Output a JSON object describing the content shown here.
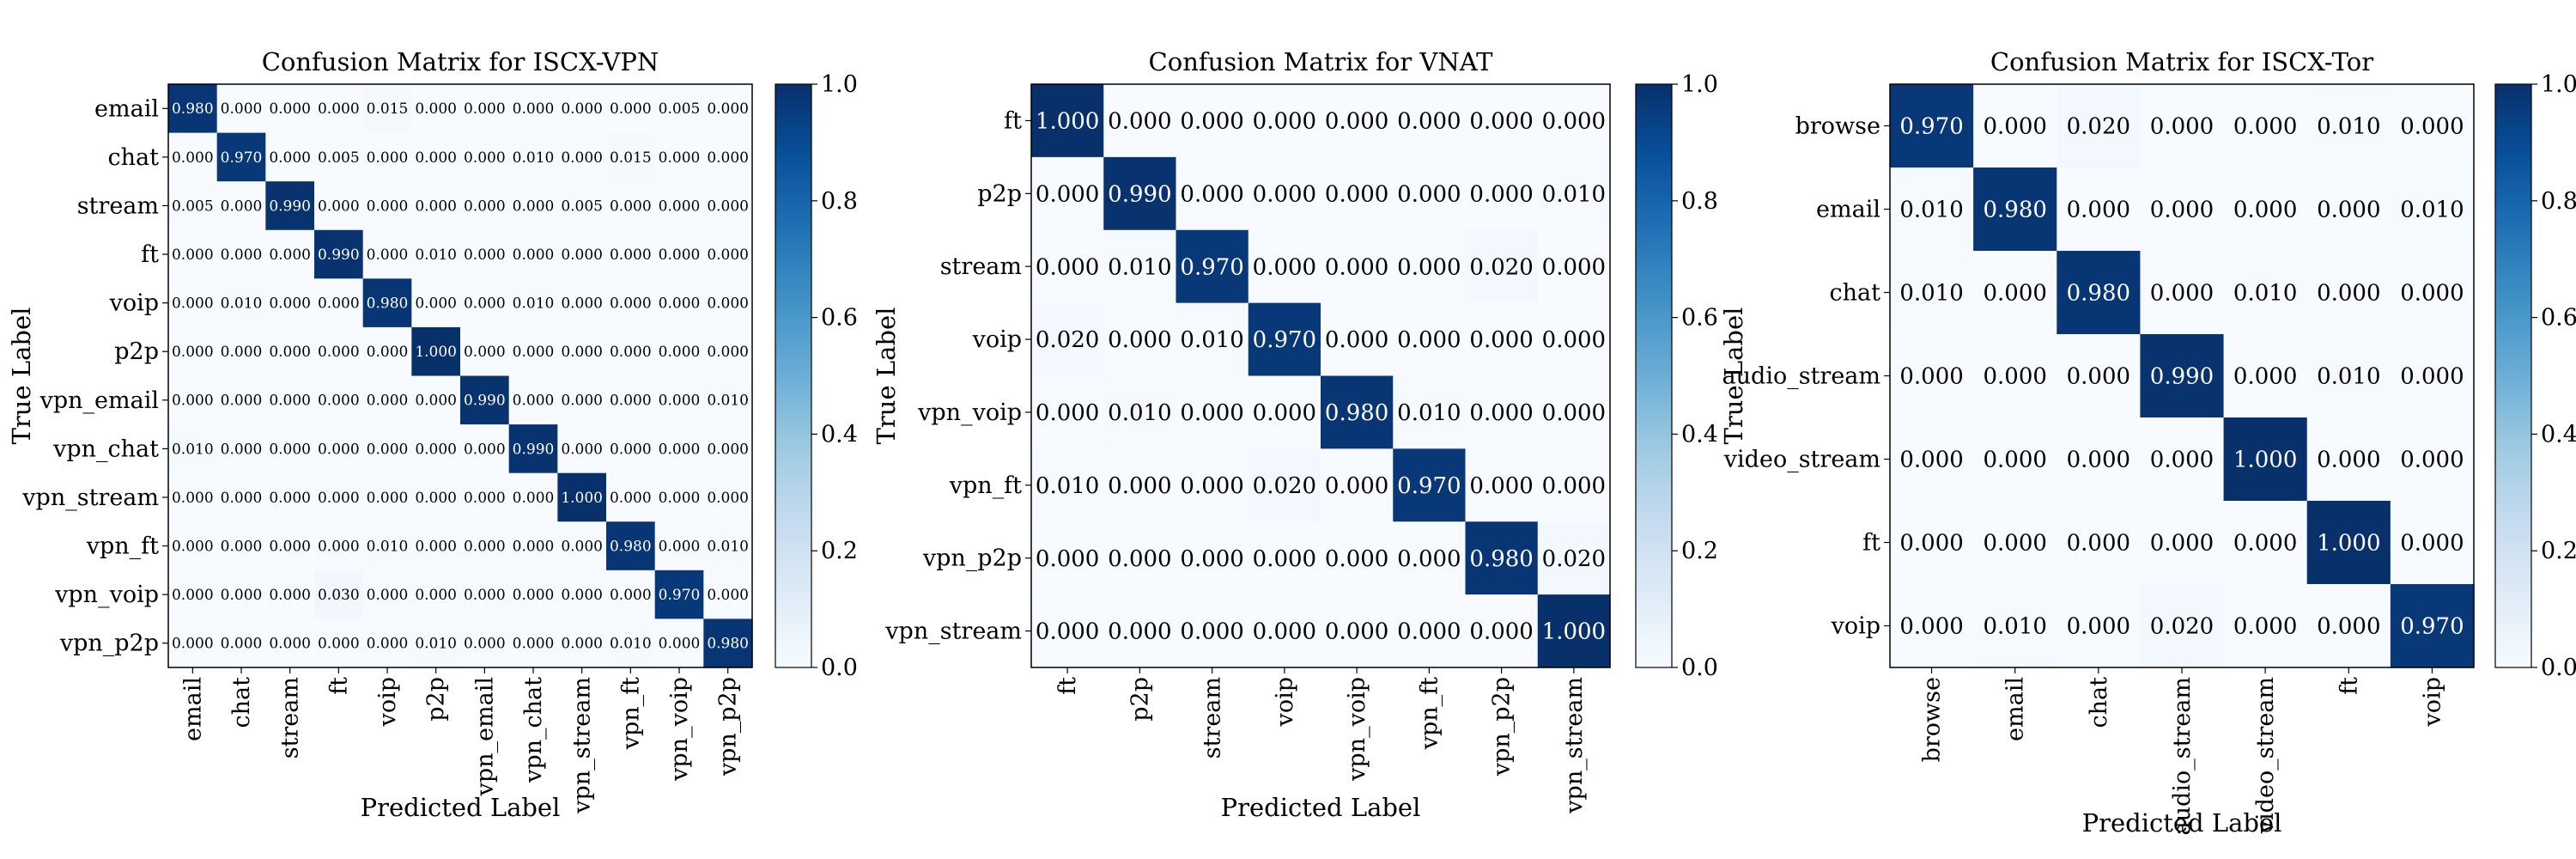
{
  "chart_data": [
    {
      "type": "heatmap",
      "title": "Confusion Matrix for ISCX-VPN",
      "xlabel": "Predicted Label",
      "ylabel": "True Label",
      "labels": [
        "email",
        "chat",
        "stream",
        "ft",
        "voip",
        "p2p",
        "vpn_email",
        "vpn_chat",
        "vpn_stream",
        "vpn_ft",
        "vpn_voip",
        "vpn_p2p"
      ],
      "matrix": [
        [
          0.98,
          0.0,
          0.0,
          0.0,
          0.015,
          0.0,
          0.0,
          0.0,
          0.0,
          0.0,
          0.005,
          0.0
        ],
        [
          0.0,
          0.97,
          0.0,
          0.005,
          0.0,
          0.0,
          0.0,
          0.01,
          0.0,
          0.015,
          0.0,
          0.0
        ],
        [
          0.005,
          0.0,
          0.99,
          0.0,
          0.0,
          0.0,
          0.0,
          0.0,
          0.005,
          0.0,
          0.0,
          0.0
        ],
        [
          0.0,
          0.0,
          0.0,
          0.99,
          0.0,
          0.01,
          0.0,
          0.0,
          0.0,
          0.0,
          0.0,
          0.0
        ],
        [
          0.0,
          0.01,
          0.0,
          0.0,
          0.98,
          0.0,
          0.0,
          0.01,
          0.0,
          0.0,
          0.0,
          0.0
        ],
        [
          0.0,
          0.0,
          0.0,
          0.0,
          0.0,
          1.0,
          0.0,
          0.0,
          0.0,
          0.0,
          0.0,
          0.0
        ],
        [
          0.0,
          0.0,
          0.0,
          0.0,
          0.0,
          0.0,
          0.99,
          0.0,
          0.0,
          0.0,
          0.0,
          0.01
        ],
        [
          0.01,
          0.0,
          0.0,
          0.0,
          0.0,
          0.0,
          0.0,
          0.99,
          0.0,
          0.0,
          0.0,
          0.0
        ],
        [
          0.0,
          0.0,
          0.0,
          0.0,
          0.0,
          0.0,
          0.0,
          0.0,
          1.0,
          0.0,
          0.0,
          0.0
        ],
        [
          0.0,
          0.0,
          0.0,
          0.0,
          0.01,
          0.0,
          0.0,
          0.0,
          0.0,
          0.98,
          0.0,
          0.01
        ],
        [
          0.0,
          0.0,
          0.0,
          0.03,
          0.0,
          0.0,
          0.0,
          0.0,
          0.0,
          0.0,
          0.97,
          0.0
        ],
        [
          0.0,
          0.0,
          0.0,
          0.0,
          0.0,
          0.01,
          0.0,
          0.0,
          0.0,
          0.01,
          0.0,
          0.98
        ]
      ],
      "colorbar": {
        "range": [
          0.0,
          1.0
        ],
        "ticks": [
          "0.0",
          "0.2",
          "0.4",
          "0.6",
          "0.8",
          "1.0"
        ]
      },
      "colormap": "Blues"
    },
    {
      "type": "heatmap",
      "title": "Confusion Matrix for VNAT",
      "xlabel": "Predicted Label",
      "ylabel": "True Label",
      "labels": [
        "ft",
        "p2p",
        "stream",
        "voip",
        "vpn_voip",
        "vpn_ft",
        "vpn_p2p",
        "vpn_stream"
      ],
      "matrix": [
        [
          1.0,
          0.0,
          0.0,
          0.0,
          0.0,
          0.0,
          0.0,
          0.0
        ],
        [
          0.0,
          0.99,
          0.0,
          0.0,
          0.0,
          0.0,
          0.0,
          0.01
        ],
        [
          0.0,
          0.01,
          0.97,
          0.0,
          0.0,
          0.0,
          0.02,
          0.0
        ],
        [
          0.02,
          0.0,
          0.01,
          0.97,
          0.0,
          0.0,
          0.0,
          0.0
        ],
        [
          0.0,
          0.01,
          0.0,
          0.0,
          0.98,
          0.01,
          0.0,
          0.0
        ],
        [
          0.01,
          0.0,
          0.0,
          0.02,
          0.0,
          0.97,
          0.0,
          0.0
        ],
        [
          0.0,
          0.0,
          0.0,
          0.0,
          0.0,
          0.0,
          0.98,
          0.02
        ],
        [
          0.0,
          0.0,
          0.0,
          0.0,
          0.0,
          0.0,
          0.0,
          1.0
        ]
      ],
      "colorbar": {
        "range": [
          0.0,
          1.0
        ],
        "ticks": [
          "0.0",
          "0.2",
          "0.4",
          "0.6",
          "0.8",
          "1.0"
        ]
      },
      "colormap": "Blues"
    },
    {
      "type": "heatmap",
      "title": "Confusion Matrix for ISCX-Tor",
      "xlabel": "Predicted Label",
      "ylabel": "True Label",
      "labels": [
        "browse",
        "email",
        "chat",
        "audio_stream",
        "video_stream",
        "ft",
        "voip"
      ],
      "matrix": [
        [
          0.97,
          0.0,
          0.02,
          0.0,
          0.0,
          0.01,
          0.0
        ],
        [
          0.01,
          0.98,
          0.0,
          0.0,
          0.0,
          0.0,
          0.01
        ],
        [
          0.01,
          0.0,
          0.98,
          0.0,
          0.01,
          0.0,
          0.0
        ],
        [
          0.0,
          0.0,
          0.0,
          0.99,
          0.0,
          0.01,
          0.0
        ],
        [
          0.0,
          0.0,
          0.0,
          0.0,
          1.0,
          0.0,
          0.0
        ],
        [
          0.0,
          0.0,
          0.0,
          0.0,
          0.0,
          1.0,
          0.0
        ],
        [
          0.0,
          0.01,
          0.0,
          0.02,
          0.0,
          0.0,
          0.97
        ]
      ],
      "colorbar": {
        "range": [
          0.0,
          1.0
        ],
        "ticks": [
          "0.0",
          "0.2",
          "0.4",
          "0.6",
          "0.8",
          "1.0"
        ]
      },
      "colormap": "Blues"
    }
  ]
}
